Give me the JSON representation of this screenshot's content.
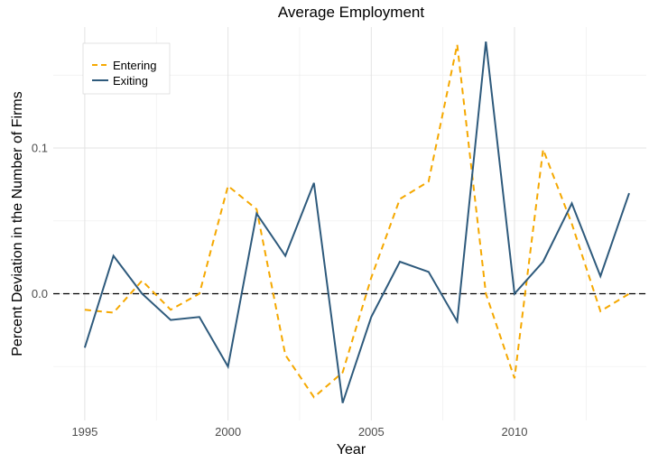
{
  "chart_data": {
    "type": "line",
    "title": "Average Employment",
    "xlabel": "Year",
    "ylabel": "Percent Deviation in the Number of Firms",
    "xlim": [
      1993.9,
      2014.6
    ],
    "ylim": [
      -0.087,
      0.183
    ],
    "x_ticks": [
      1995,
      2000,
      2005,
      2010
    ],
    "y_ticks": [
      0.0,
      0.1
    ],
    "x_tick_labels": [
      "1995",
      "2000",
      "2005",
      "2010"
    ],
    "y_tick_labels": [
      "0.0",
      "0.1"
    ],
    "grid": true,
    "legend_position": "top-left",
    "reference_line": {
      "y": 0,
      "style": "dashed",
      "color": "#000000"
    },
    "x": [
      1995,
      1996,
      1997,
      1998,
      1999,
      2000,
      2001,
      2002,
      2003,
      2004,
      2005,
      2006,
      2007,
      2008,
      2009,
      2010,
      2011,
      2012,
      2013,
      2014
    ],
    "series": [
      {
        "name": "Entering",
        "color": "#F5A800",
        "style": "dashed",
        "values": [
          -0.011,
          -0.013,
          0.009,
          -0.011,
          0.0,
          0.074,
          0.058,
          -0.042,
          -0.071,
          -0.054,
          0.011,
          0.065,
          0.077,
          0.171,
          0.0,
          -0.058,
          0.099,
          0.048,
          -0.012,
          0.0
        ]
      },
      {
        "name": "Exiting",
        "color": "#2E5A7C",
        "style": "solid",
        "values": [
          -0.037,
          0.026,
          0.0,
          -0.018,
          -0.016,
          -0.05,
          0.055,
          0.026,
          0.076,
          -0.075,
          -0.016,
          0.022,
          0.015,
          -0.019,
          0.173,
          0.0,
          0.022,
          0.062,
          0.012,
          0.069
        ]
      }
    ]
  }
}
